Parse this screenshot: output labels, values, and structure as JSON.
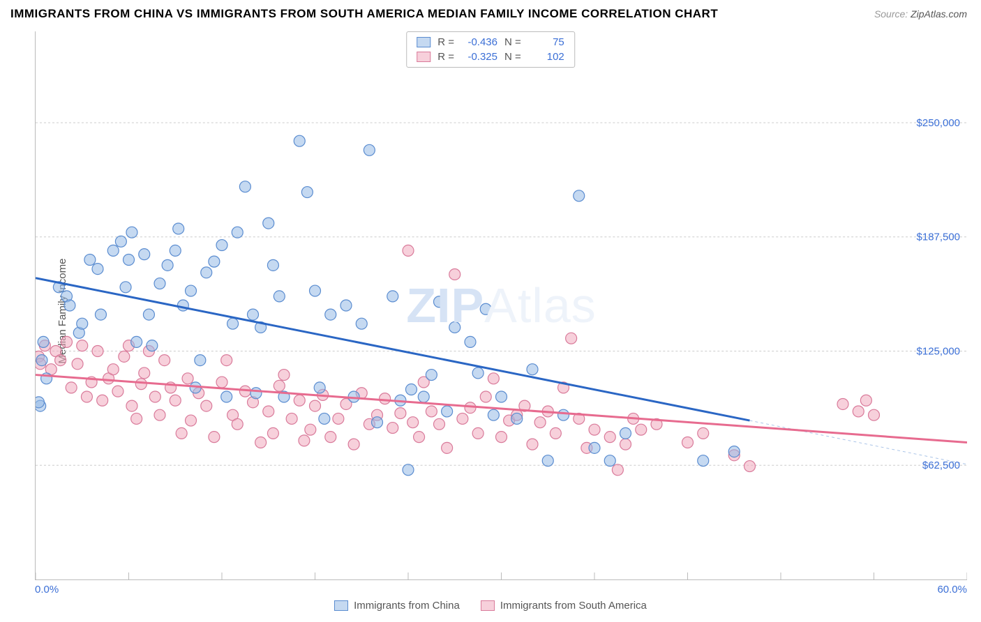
{
  "title": "IMMIGRANTS FROM CHINA VS IMMIGRANTS FROM SOUTH AMERICA MEDIAN FAMILY INCOME CORRELATION CHART",
  "source_label": "Source:",
  "source_value": "ZipAtlas.com",
  "ylabel": "Median Family Income",
  "watermark_bold": "ZIP",
  "watermark_rest": "Atlas",
  "chart": {
    "type": "scatter",
    "xlim": [
      0,
      60
    ],
    "ylim": [
      0,
      300000
    ],
    "x_tick_positions": [
      0,
      6,
      12,
      18,
      24,
      30,
      36,
      42,
      48,
      54,
      60
    ],
    "x_min_label": "0.0%",
    "x_max_label": "60.0%",
    "y_gridlines": [
      62500,
      125000,
      187500,
      250000
    ],
    "y_tick_labels": [
      "$62,500",
      "$125,000",
      "$187,500",
      "$250,000"
    ],
    "background_color": "#ffffff",
    "grid_color": "#cccccc",
    "marker_radius": 8,
    "series_blue": {
      "name": "Immigrants from China",
      "color_fill": "rgba(150,185,230,0.55)",
      "color_stroke": "#5a8cd0",
      "R": "-0.436",
      "N": "75",
      "regression": {
        "x1": 0,
        "y1": 165000,
        "x2": 46,
        "y2": 87000
      },
      "regression_ext": {
        "x1": 46,
        "y1": 87000,
        "x2": 60,
        "y2": 63000
      },
      "points": [
        [
          0.3,
          95000
        ],
        [
          0.2,
          97000
        ],
        [
          0.5,
          130000
        ],
        [
          0.7,
          110000
        ],
        [
          0.4,
          120000
        ],
        [
          1.5,
          160000
        ],
        [
          2,
          155000
        ],
        [
          2.2,
          150000
        ],
        [
          2.8,
          135000
        ],
        [
          3,
          140000
        ],
        [
          3.5,
          175000
        ],
        [
          4,
          170000
        ],
        [
          4.2,
          145000
        ],
        [
          5,
          180000
        ],
        [
          5.5,
          185000
        ],
        [
          5.8,
          160000
        ],
        [
          6,
          175000
        ],
        [
          6.2,
          190000
        ],
        [
          6.5,
          130000
        ],
        [
          7,
          178000
        ],
        [
          7.3,
          145000
        ],
        [
          7.5,
          128000
        ],
        [
          8,
          162000
        ],
        [
          8.5,
          172000
        ],
        [
          9,
          180000
        ],
        [
          9.2,
          192000
        ],
        [
          9.5,
          150000
        ],
        [
          10,
          158000
        ],
        [
          10.3,
          105000
        ],
        [
          10.6,
          120000
        ],
        [
          11,
          168000
        ],
        [
          11.5,
          174000
        ],
        [
          12,
          183000
        ],
        [
          12.3,
          100000
        ],
        [
          12.7,
          140000
        ],
        [
          13,
          190000
        ],
        [
          13.5,
          215000
        ],
        [
          14,
          145000
        ],
        [
          14.2,
          102000
        ],
        [
          14.5,
          138000
        ],
        [
          15,
          195000
        ],
        [
          15.3,
          172000
        ],
        [
          15.7,
          155000
        ],
        [
          16,
          100000
        ],
        [
          17,
          240000
        ],
        [
          17.5,
          212000
        ],
        [
          18,
          158000
        ],
        [
          18.3,
          105000
        ],
        [
          18.6,
          88000
        ],
        [
          19,
          145000
        ],
        [
          20,
          150000
        ],
        [
          20.5,
          100000
        ],
        [
          21,
          140000
        ],
        [
          21.5,
          235000
        ],
        [
          22,
          86000
        ],
        [
          23,
          155000
        ],
        [
          23.5,
          98000
        ],
        [
          24,
          60000
        ],
        [
          24.2,
          104000
        ],
        [
          25,
          100000
        ],
        [
          25.5,
          112000
        ],
        [
          26,
          152000
        ],
        [
          26.5,
          92000
        ],
        [
          27,
          138000
        ],
        [
          28,
          130000
        ],
        [
          28.5,
          113000
        ],
        [
          29,
          148000
        ],
        [
          29.5,
          90000
        ],
        [
          30,
          100000
        ],
        [
          31,
          88000
        ],
        [
          32,
          115000
        ],
        [
          33,
          65000
        ],
        [
          34,
          90000
        ],
        [
          35,
          210000
        ],
        [
          36,
          72000
        ],
        [
          37,
          65000
        ],
        [
          38,
          80000
        ],
        [
          43,
          65000
        ],
        [
          45,
          70000
        ]
      ]
    },
    "series_pink": {
      "name": "Immigrants from South America",
      "color_fill": "rgba(240,170,190,0.55)",
      "color_stroke": "#d97a9a",
      "R": "-0.325",
      "N": "102",
      "regression": {
        "x1": 0,
        "y1": 112000,
        "x2": 60,
        "y2": 75000
      },
      "points": [
        [
          0.2,
          122000
        ],
        [
          0.3,
          118000
        ],
        [
          0.6,
          128000
        ],
        [
          1,
          115000
        ],
        [
          1.3,
          125000
        ],
        [
          1.6,
          120000
        ],
        [
          2,
          130000
        ],
        [
          2.3,
          105000
        ],
        [
          2.7,
          118000
        ],
        [
          3,
          128000
        ],
        [
          3.3,
          100000
        ],
        [
          3.6,
          108000
        ],
        [
          4,
          125000
        ],
        [
          4.3,
          98000
        ],
        [
          4.7,
          110000
        ],
        [
          5,
          115000
        ],
        [
          5.3,
          103000
        ],
        [
          5.7,
          122000
        ],
        [
          6,
          128000
        ],
        [
          6.2,
          95000
        ],
        [
          6.5,
          88000
        ],
        [
          6.8,
          107000
        ],
        [
          7,
          113000
        ],
        [
          7.3,
          125000
        ],
        [
          7.7,
          100000
        ],
        [
          8,
          90000
        ],
        [
          8.3,
          120000
        ],
        [
          8.7,
          105000
        ],
        [
          9,
          98000
        ],
        [
          9.4,
          80000
        ],
        [
          9.8,
          110000
        ],
        [
          10,
          87000
        ],
        [
          10.5,
          102000
        ],
        [
          11,
          95000
        ],
        [
          11.5,
          78000
        ],
        [
          12,
          108000
        ],
        [
          12.3,
          120000
        ],
        [
          12.7,
          90000
        ],
        [
          13,
          85000
        ],
        [
          13.5,
          103000
        ],
        [
          14,
          97000
        ],
        [
          14.5,
          75000
        ],
        [
          15,
          92000
        ],
        [
          15.3,
          80000
        ],
        [
          15.7,
          106000
        ],
        [
          16,
          112000
        ],
        [
          16.5,
          88000
        ],
        [
          17,
          98000
        ],
        [
          17.3,
          76000
        ],
        [
          17.7,
          82000
        ],
        [
          18,
          95000
        ],
        [
          18.5,
          101000
        ],
        [
          19,
          78000
        ],
        [
          19.5,
          88000
        ],
        [
          20,
          96000
        ],
        [
          20.5,
          74000
        ],
        [
          21,
          102000
        ],
        [
          21.5,
          85000
        ],
        [
          22,
          90000
        ],
        [
          22.5,
          99000
        ],
        [
          23,
          83000
        ],
        [
          23.5,
          91000
        ],
        [
          24,
          180000
        ],
        [
          24.3,
          86000
        ],
        [
          24.7,
          78000
        ],
        [
          25,
          108000
        ],
        [
          25.5,
          92000
        ],
        [
          26,
          85000
        ],
        [
          26.5,
          72000
        ],
        [
          27,
          167000
        ],
        [
          27.5,
          88000
        ],
        [
          28,
          94000
        ],
        [
          28.5,
          80000
        ],
        [
          29,
          100000
        ],
        [
          29.5,
          110000
        ],
        [
          30,
          78000
        ],
        [
          30.5,
          87000
        ],
        [
          31,
          90000
        ],
        [
          31.5,
          95000
        ],
        [
          32,
          74000
        ],
        [
          32.5,
          86000
        ],
        [
          33,
          92000
        ],
        [
          33.5,
          80000
        ],
        [
          34,
          105000
        ],
        [
          34.5,
          132000
        ],
        [
          35,
          88000
        ],
        [
          35.5,
          72000
        ],
        [
          36,
          82000
        ],
        [
          37,
          78000
        ],
        [
          37.5,
          60000
        ],
        [
          38,
          74000
        ],
        [
          38.5,
          88000
        ],
        [
          39,
          82000
        ],
        [
          40,
          85000
        ],
        [
          42,
          75000
        ],
        [
          43,
          80000
        ],
        [
          45,
          68000
        ],
        [
          46,
          62000
        ],
        [
          52,
          96000
        ],
        [
          53,
          92000
        ],
        [
          53.5,
          98000
        ],
        [
          54,
          90000
        ]
      ]
    }
  },
  "legend": {
    "blue_label": "Immigrants from China",
    "pink_label": "Immigrants from South America"
  },
  "stat_labels": {
    "R": "R =",
    "N": "N ="
  }
}
